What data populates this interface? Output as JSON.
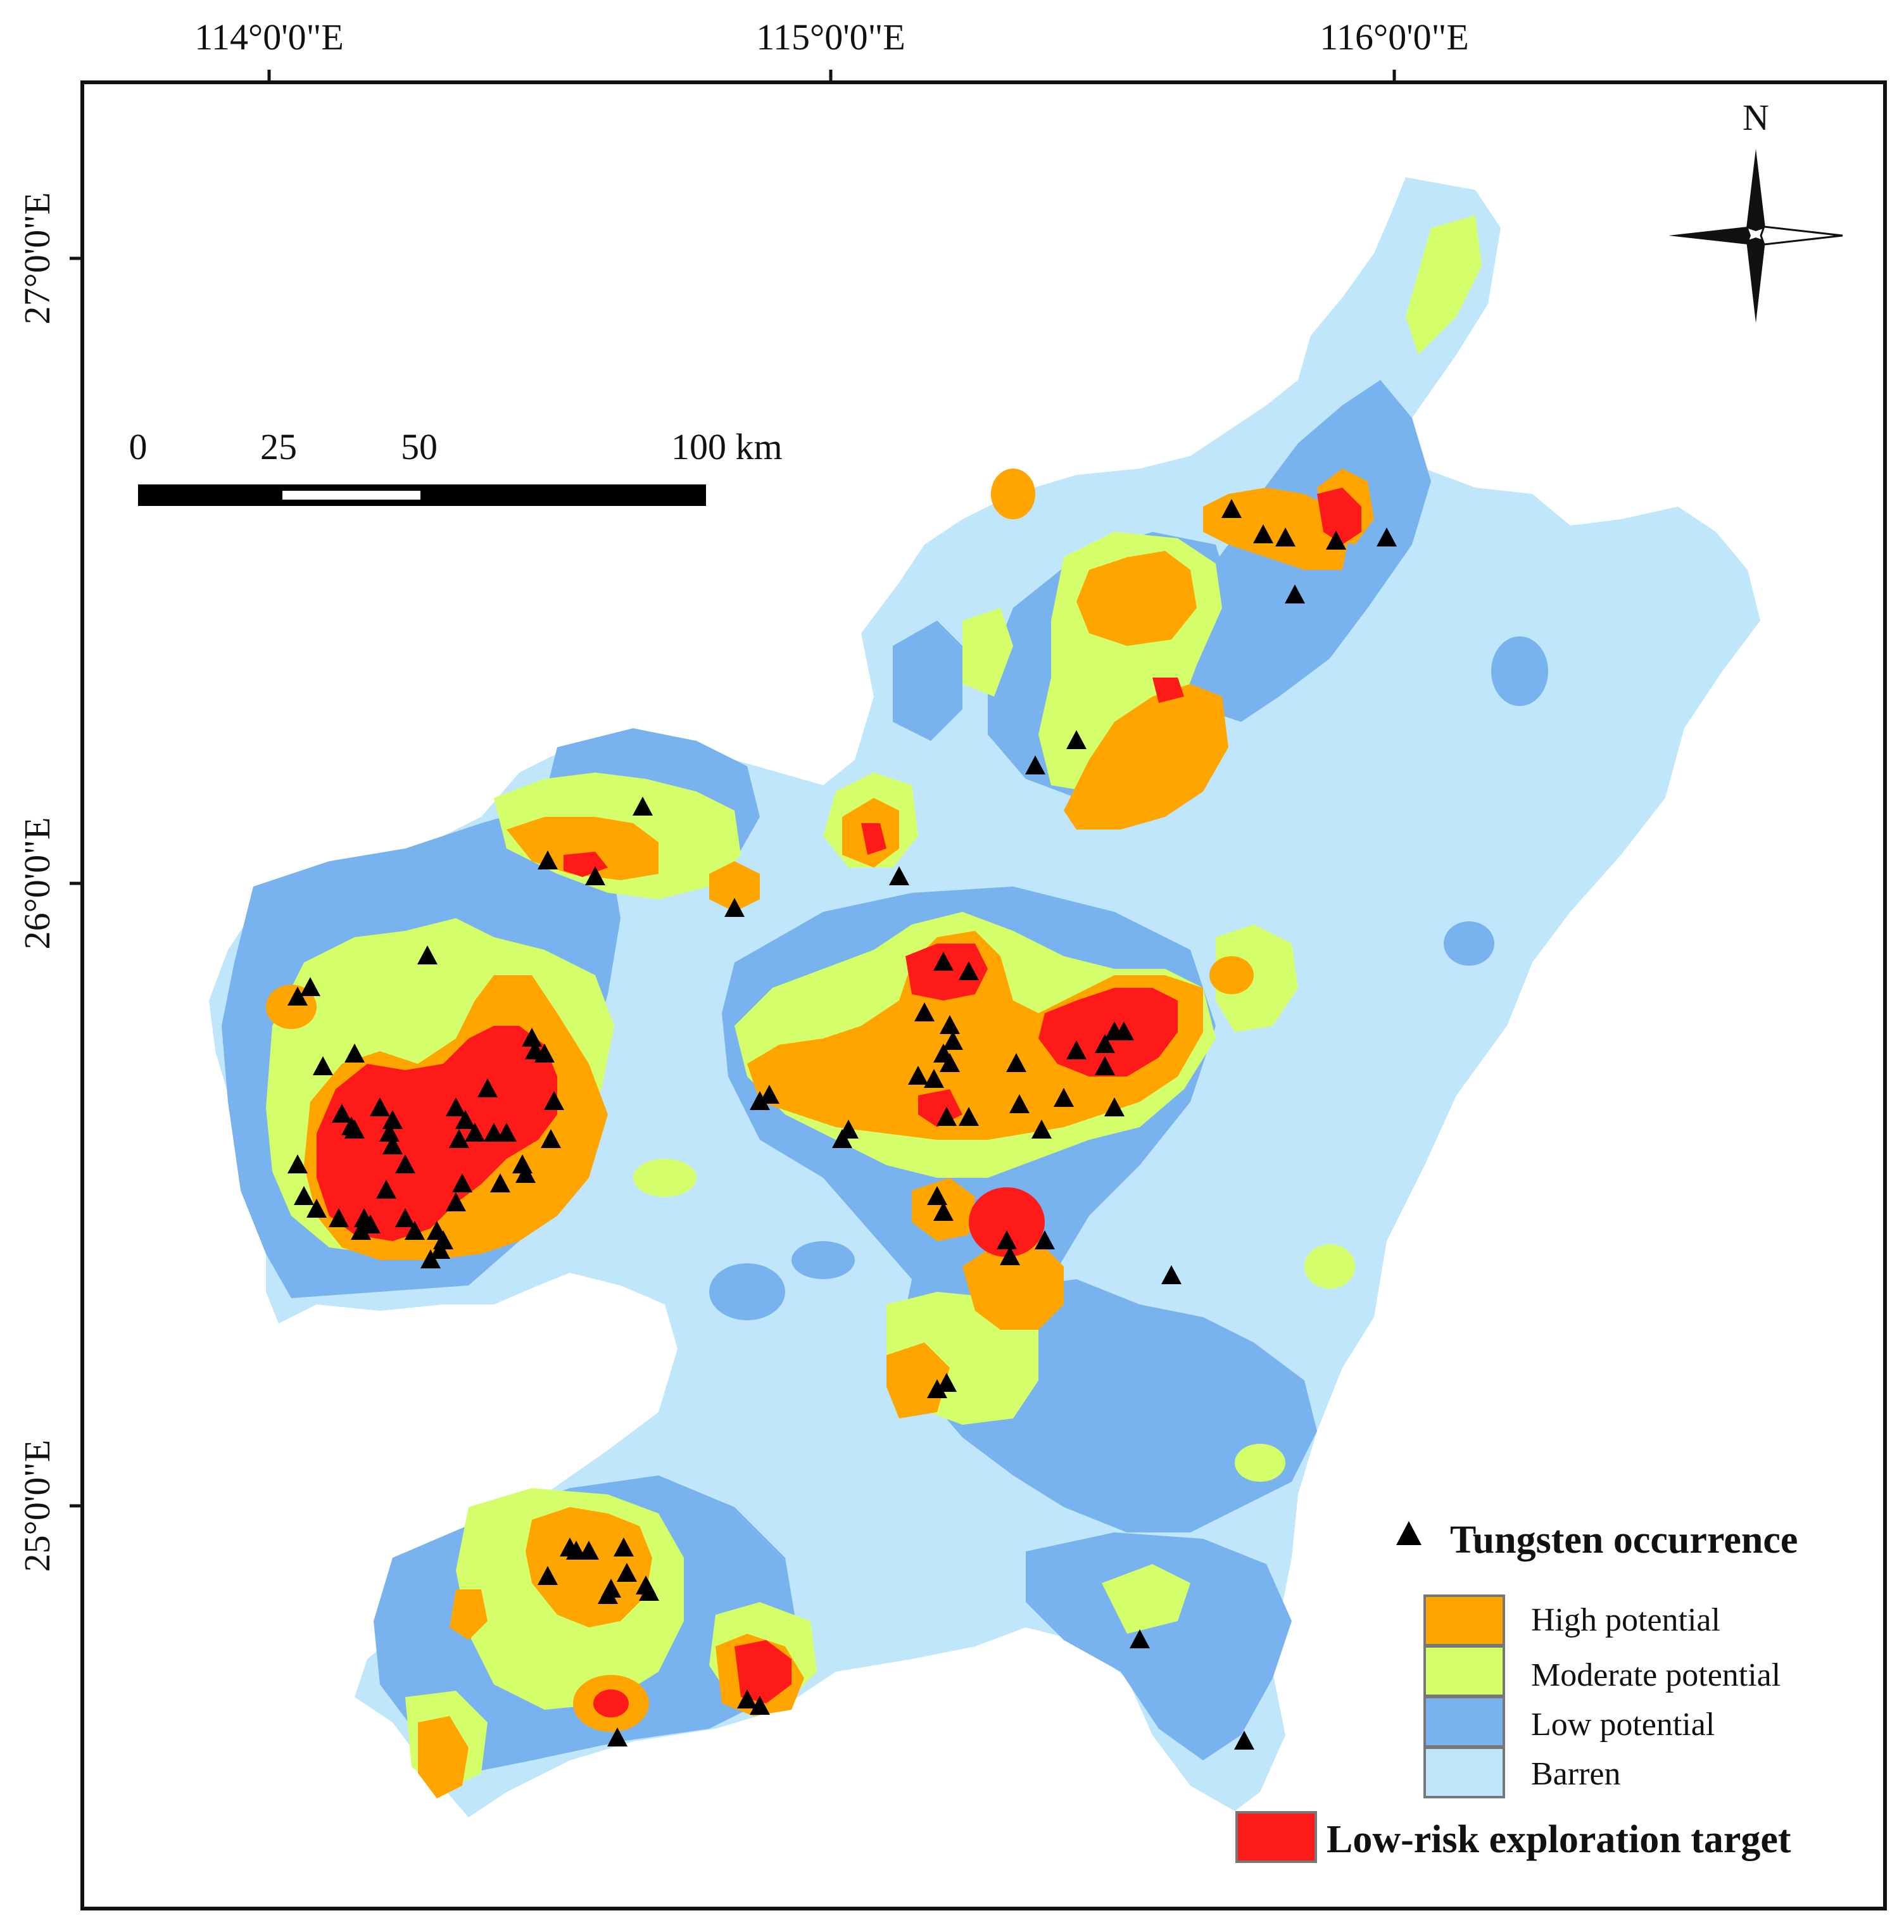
{
  "map": {
    "top_labels": [
      "114°0'0\"E",
      "115°0'0\"E",
      "116°0'0\"E"
    ],
    "left_labels": [
      "27°0'0\"E",
      "26°0'0\"E",
      "25°0'0\"E"
    ],
    "north_label": "N",
    "scale_labels": [
      "0",
      "25",
      "50",
      "100 km"
    ]
  },
  "legend": {
    "occurrence_label": "Tungsten occurrence",
    "classes": [
      {
        "label": "High potential",
        "color": "#ffa500"
      },
      {
        "label": "Moderate potential",
        "color": "#d4ff6a"
      },
      {
        "label": "Low potential",
        "color": "#78b3f0"
      },
      {
        "label": "Barren",
        "color": "#bfe6fb"
      }
    ],
    "target_label": "Low-risk exploration target",
    "target_color": "#ff1a1a"
  },
  "colors": {
    "frame": "#111111",
    "occurrence_marker": "#000000"
  }
}
